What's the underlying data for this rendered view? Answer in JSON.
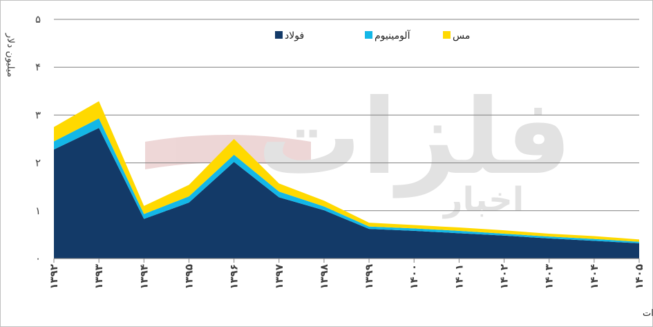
{
  "chart_data": {
    "type": "area",
    "stacked": true,
    "ylabel": "میلیون دلار",
    "ylim": [
      0,
      5
    ],
    "yticks": [
      0,
      1,
      2,
      3,
      4,
      5
    ],
    "ytick_labels": [
      "۰",
      "۱",
      "۲",
      "۳",
      "۴",
      "۵"
    ],
    "categories": [
      "۱۳۹۲",
      "۱۳۹۳",
      "۱۳۹۴",
      "۱۳۹۵",
      "۱۳۹۶",
      "۱۳۹۷",
      "۱۳۹۸",
      "۱۳۹۹",
      "۱۴۰۰",
      "۱۴۰۱",
      "۱۴۰۲",
      "۱۴۰۳",
      "۱۴۰۴",
      "۱۴۰۵"
    ],
    "series": [
      {
        "name": "فولاد",
        "color": "#133a68",
        "values": [
          2.28,
          2.73,
          0.83,
          1.17,
          2.02,
          1.28,
          1.01,
          0.62,
          0.58,
          0.53,
          0.48,
          0.42,
          0.37,
          0.32
        ]
      },
      {
        "name": "آلومینیوم",
        "color": "#13b7e7",
        "values": [
          0.17,
          0.2,
          0.1,
          0.13,
          0.15,
          0.12,
          0.08,
          0.05,
          0.05,
          0.05,
          0.04,
          0.04,
          0.04,
          0.03
        ]
      },
      {
        "name": "مس",
        "color": "#ffd900",
        "values": [
          0.3,
          0.36,
          0.17,
          0.24,
          0.33,
          0.17,
          0.12,
          0.08,
          0.07,
          0.07,
          0.07,
          0.06,
          0.06,
          0.05
        ]
      }
    ],
    "grid": true,
    "legend_position": "top-center",
    "source": "منبع: وزارت میراث فرهنگی، گردشگری و صنایع دستی و محاسبات اخبار فلزات"
  },
  "watermark": {
    "main": "فلزات",
    "sub": "اخبار",
    "color": "#d9d9d9"
  }
}
